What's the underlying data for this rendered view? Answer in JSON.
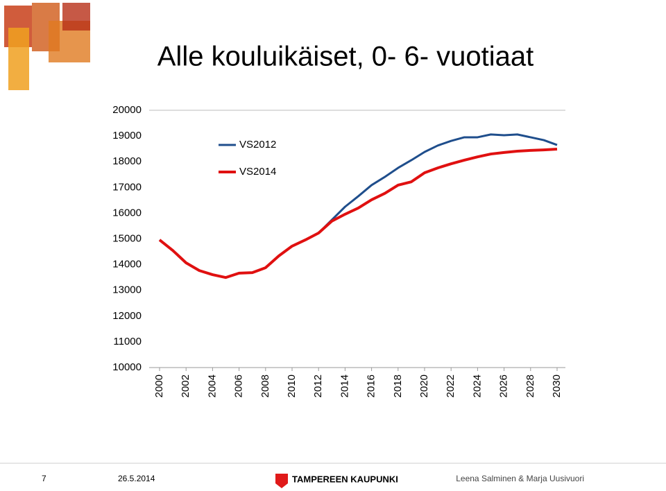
{
  "chart_data": {
    "type": "line",
    "title": "Alle kouluikäiset, 0- 6- vuotiaat",
    "x": [
      2000,
      2001,
      2002,
      2003,
      2004,
      2005,
      2006,
      2007,
      2008,
      2009,
      2010,
      2011,
      2012,
      2013,
      2014,
      2015,
      2016,
      2017,
      2018,
      2019,
      2020,
      2021,
      2022,
      2023,
      2024,
      2025,
      2026,
      2027,
      2028,
      2029,
      2030
    ],
    "xlim": [
      2000,
      2030
    ],
    "xticks": [
      2000,
      2002,
      2004,
      2006,
      2008,
      2010,
      2012,
      2014,
      2016,
      2018,
      2020,
      2022,
      2024,
      2026,
      2028,
      2030
    ],
    "ylim": [
      10000,
      20000
    ],
    "yticks": [
      10000,
      11000,
      12000,
      13000,
      14000,
      15000,
      16000,
      17000,
      18000,
      19000,
      20000
    ],
    "grid": false,
    "legend": "upper-left",
    "series": [
      {
        "name": "VS2012",
        "color": "#1f4e8c",
        "values": [
          14960,
          14550,
          14070,
          13770,
          13610,
          13500,
          13670,
          13690,
          13880,
          14340,
          14720,
          14960,
          15230,
          15740,
          16250,
          16660,
          17090,
          17410,
          17760,
          18060,
          18380,
          18630,
          18810,
          18950,
          18950,
          19060,
          19030,
          19060,
          18950,
          18840,
          18650
        ]
      },
      {
        "name": "VS2014",
        "color": "#e01010",
        "values": [
          14960,
          14550,
          14070,
          13770,
          13610,
          13500,
          13670,
          13690,
          13880,
          14340,
          14720,
          14960,
          15230,
          15690,
          15960,
          16200,
          16520,
          16770,
          17090,
          17220,
          17570,
          17760,
          17920,
          18060,
          18190,
          18300,
          18360,
          18410,
          18440,
          18460,
          18490
        ]
      }
    ]
  },
  "footer": {
    "page": "7",
    "date": "26.5.2014",
    "org": "TAMPEREEN KAUPUNKI",
    "authors": "Leena Salminen & Marja Uusivuori"
  }
}
